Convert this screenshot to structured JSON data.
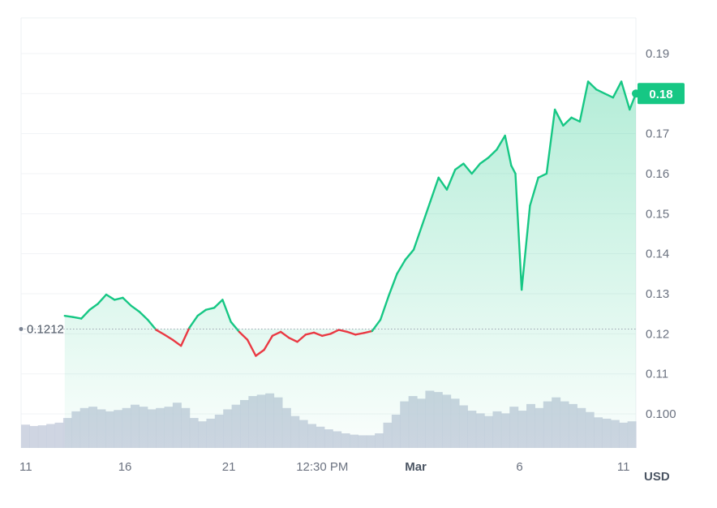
{
  "chart_data": {
    "type": "line",
    "y_ticks": [
      "0.19",
      "0.18",
      "0.17",
      "0.16",
      "0.15",
      "0.14",
      "0.13",
      "0.12",
      "0.11",
      "0.100"
    ],
    "y_tick_values": [
      0.19,
      0.18,
      0.17,
      0.16,
      0.15,
      0.14,
      0.13,
      0.12,
      0.11,
      0.1
    ],
    "ylim": [
      0.0915,
      0.1985
    ],
    "x_ticks": [
      {
        "label": "11",
        "bold": false
      },
      {
        "label": "16",
        "bold": false
      },
      {
        "label": "21",
        "bold": false
      },
      {
        "label": "12:30 PM",
        "bold": false
      },
      {
        "label": "Mar",
        "bold": true
      },
      {
        "label": "6",
        "bold": false
      },
      {
        "label": "11",
        "bold": false
      }
    ],
    "x_tick_days": [
      0,
      5,
      10,
      14.5,
      19,
      24,
      29
    ],
    "xlim": [
      0,
      29.6
    ],
    "opening_price": 0.1212,
    "opening_label": "0.1212",
    "current_price": 0.18,
    "current_label": "0.18",
    "unit": "USD",
    "grid": true,
    "colors": {
      "up": "#16c784",
      "down": "#ea3943",
      "volume": "#c7cedd",
      "label_bg": "#16c784"
    },
    "series": [
      {
        "values_day": [
          2.1,
          2.5,
          2.9,
          3.3,
          3.7,
          4.1,
          4.5,
          4.9,
          5.3,
          5.7,
          6.1,
          6.5,
          6.9,
          7.3,
          7.7,
          8.1,
          8.5,
          8.9,
          9.3,
          9.7,
          10.1,
          10.5,
          10.9,
          11.3,
          11.7,
          12.1,
          12.5,
          12.9,
          13.3,
          13.7,
          14.1,
          14.5,
          14.9,
          15.3,
          15.7,
          16.1,
          16.5,
          16.9,
          17.3,
          17.7,
          18.1,
          18.5,
          18.9,
          19.3,
          19.7,
          20.1,
          20.5,
          20.9,
          21.3,
          21.7,
          22.1,
          22.5,
          22.9,
          23.3,
          23.6,
          23.8,
          24.1,
          24.5,
          24.9,
          25.3,
          25.7,
          26.1,
          26.5,
          26.9,
          27.3,
          27.7,
          28.1,
          28.5,
          28.9,
          29.3,
          29.6
        ],
        "values_price": [
          0.1245,
          0.1242,
          0.1238,
          0.126,
          0.1275,
          0.1298,
          0.1285,
          0.129,
          0.127,
          0.1255,
          0.1235,
          0.121,
          0.1198,
          0.1185,
          0.117,
          0.1215,
          0.1245,
          0.126,
          0.1265,
          0.1285,
          0.123,
          0.1205,
          0.1185,
          0.1145,
          0.116,
          0.1195,
          0.1205,
          0.119,
          0.118,
          0.1198,
          0.1203,
          0.1195,
          0.12,
          0.121,
          0.1205,
          0.1198,
          0.1202,
          0.1207,
          0.1235,
          0.1295,
          0.135,
          0.1385,
          0.141,
          0.147,
          0.153,
          0.159,
          0.156,
          0.161,
          0.1625,
          0.16,
          0.1625,
          0.164,
          0.166,
          0.1695,
          0.162,
          0.16,
          0.131,
          0.152,
          0.159,
          0.16,
          0.176,
          0.172,
          0.174,
          0.173,
          0.183,
          0.181,
          0.18,
          0.179,
          0.183,
          0.176,
          0.18
        ]
      }
    ],
    "volume": [
      0.35,
      0.33,
      0.34,
      0.36,
      0.38,
      0.45,
      0.55,
      0.6,
      0.62,
      0.58,
      0.55,
      0.57,
      0.6,
      0.65,
      0.62,
      0.58,
      0.6,
      0.62,
      0.68,
      0.6,
      0.45,
      0.4,
      0.44,
      0.5,
      0.58,
      0.65,
      0.72,
      0.78,
      0.8,
      0.82,
      0.76,
      0.6,
      0.48,
      0.42,
      0.36,
      0.32,
      0.28,
      0.25,
      0.22,
      0.2,
      0.19,
      0.19,
      0.22,
      0.38,
      0.5,
      0.7,
      0.78,
      0.74,
      0.86,
      0.84,
      0.8,
      0.74,
      0.64,
      0.56,
      0.52,
      0.48,
      0.55,
      0.52,
      0.62,
      0.56,
      0.66,
      0.6,
      0.7,
      0.76,
      0.7,
      0.66,
      0.6,
      0.54,
      0.46,
      0.44,
      0.42,
      0.38,
      0.4
    ]
  }
}
